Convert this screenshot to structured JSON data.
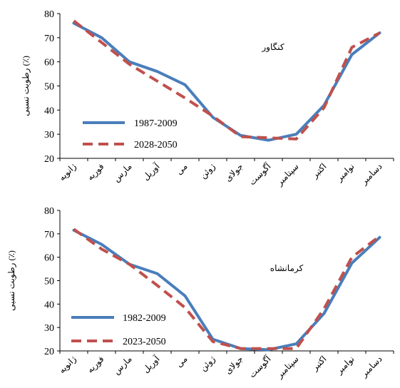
{
  "chart_data": [
    {
      "type": "line",
      "title": "کنگاور",
      "ylabel": "رطوبت نسبی (٪)",
      "xlabel": "",
      "ylim": [
        20,
        80
      ],
      "yticks": [
        20,
        30,
        40,
        50,
        60,
        70,
        80
      ],
      "grid": false,
      "legend": "bottom-left",
      "categories": [
        "ژانویه",
        "فوریه",
        "مارس",
        "آوریل",
        "می",
        "ژوئن",
        "جولای",
        "آگوست",
        "سپتامبر",
        "اکتبر",
        "نوامبر",
        "دسامبر"
      ],
      "series": [
        {
          "name": "1987-2009",
          "color": "#4a7ebb",
          "style": "solid",
          "values": [
            76,
            70,
            60,
            56,
            50.5,
            37,
            29.5,
            27.5,
            30,
            42,
            63,
            72
          ]
        },
        {
          "name": "2028-2050",
          "color": "#c0504d",
          "style": "dashed",
          "values": [
            77,
            68,
            59,
            52,
            45,
            37.5,
            29,
            28.5,
            28,
            41,
            66,
            72
          ]
        }
      ]
    },
    {
      "type": "line",
      "title": "کرمانشاه",
      "ylabel": "رطوبت نسبی (٪)",
      "xlabel": "",
      "ylim": [
        20,
        80
      ],
      "yticks": [
        20,
        30,
        40,
        50,
        60,
        70,
        80
      ],
      "grid": false,
      "legend": "bottom-left",
      "categories": [
        "ژانویه",
        "فوریه",
        "مارس",
        "آوریل",
        "می",
        "ژوئن",
        "جولای",
        "آگوست",
        "سپتامبر",
        "اکتبر",
        "نوامبر",
        "دسامبر"
      ],
      "series": [
        {
          "name": "1982-2009",
          "color": "#4a7ebb",
          "style": "solid",
          "values": [
            71.5,
            65.5,
            57,
            53,
            43.5,
            25,
            21,
            20.5,
            23,
            36,
            57.5,
            68.5
          ]
        },
        {
          "name": "2023-2050",
          "color": "#c0504d",
          "style": "dashed",
          "values": [
            72,
            63.5,
            57,
            48,
            38.5,
            24,
            21,
            21,
            21,
            38,
            60,
            69
          ]
        }
      ]
    }
  ]
}
